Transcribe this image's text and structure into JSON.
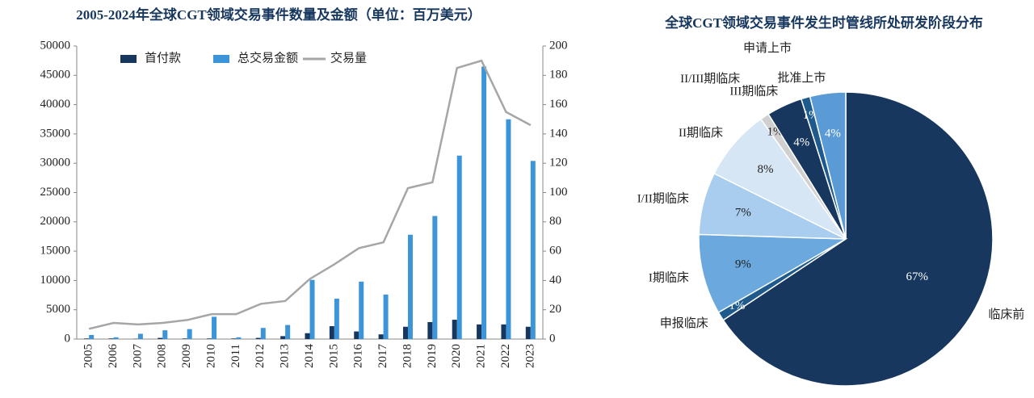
{
  "chart_data": [
    {
      "type": "bar_line",
      "title": "2005-2024年全球CGT领域交易事件数量及金额（单位：百万美元）",
      "categories": [
        "2005",
        "2006",
        "2007",
        "2008",
        "2009",
        "2010",
        "2011",
        "2012",
        "2013",
        "2014",
        "2015",
        "2016",
        "2017",
        "2018",
        "2019",
        "2020",
        "2021",
        "2022",
        "2023"
      ],
      "series": [
        {
          "name": "首付款",
          "color": "#17375e",
          "values": [
            100,
            100,
            50,
            200,
            100,
            100,
            100,
            200,
            500,
            1000,
            2200,
            1300,
            800,
            2100,
            2900,
            3300,
            2500,
            2500,
            2100
          ]
        },
        {
          "name": "总交易金额",
          "color": "#3d95d9",
          "values": [
            700,
            300,
            900,
            1500,
            1700,
            3800,
            300,
            1900,
            2400,
            10100,
            6900,
            9800,
            7600,
            17800,
            21000,
            31300,
            46500,
            37500,
            30400
          ]
        },
        {
          "name": "交易量",
          "color": "#a6a6a6",
          "axis": "y2",
          "values": [
            7,
            11,
            10,
            11,
            13,
            17,
            17,
            24,
            26,
            41,
            51,
            62,
            66,
            103,
            107,
            185,
            190,
            155,
            146
          ]
        }
      ],
      "ylim": [
        0,
        50000
      ],
      "yticks": [
        0,
        5000,
        10000,
        15000,
        20000,
        25000,
        30000,
        35000,
        40000,
        45000,
        50000
      ],
      "y2lim": [
        0,
        200
      ],
      "y2ticks": [
        0,
        20,
        40,
        60,
        80,
        100,
        120,
        140,
        160,
        180,
        200
      ],
      "legend": "upper left"
    },
    {
      "type": "pie",
      "title": "全球CGT领域交易事件发生时管线所处研发阶段分布",
      "categories": [
        "临床前",
        "申报临床",
        "I期临床",
        "I/II期临床",
        "II期临床",
        "II/III期临床",
        "III期临床",
        "申请上市",
        "批准上市"
      ],
      "values": [
        67,
        1,
        9,
        7,
        8,
        1,
        4,
        1,
        4
      ],
      "value_labels": [
        "67%",
        "1%",
        "9%",
        "7%",
        "8%",
        "1%",
        "4%",
        "1%",
        "4%"
      ],
      "colors": [
        "#17375e",
        "#1f5a8c",
        "#6aa8de",
        "#a9cdee",
        "#d6e6f5",
        "#d0d0d0",
        "#17375e",
        "#1f5a8c",
        "#5b9bd5"
      ]
    }
  ]
}
